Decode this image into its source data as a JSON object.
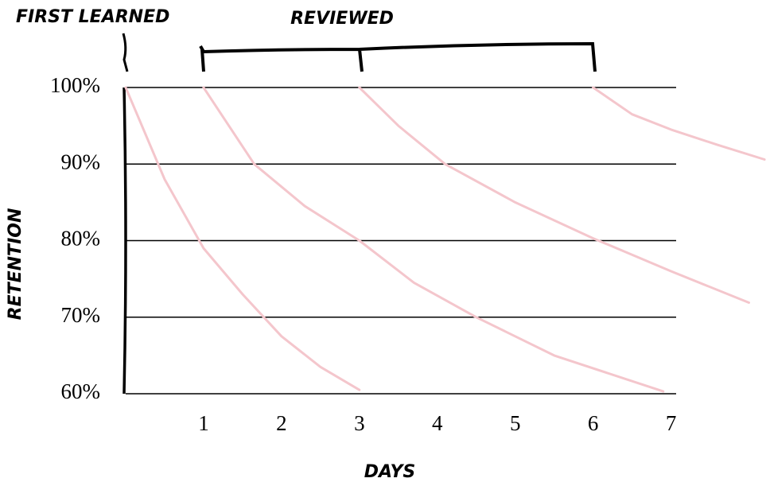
{
  "chart_data": {
    "type": "line",
    "annotations": [
      "FIRST LEARNED",
      "REVIEWED"
    ],
    "xlabel": "DAYS",
    "ylabel": "RETENTION",
    "xlim": [
      0,
      8.25
    ],
    "ylim": [
      60,
      100
    ],
    "xticks": [
      1,
      2,
      3,
      4,
      5,
      6,
      7
    ],
    "yticks": [
      {
        "value": 60,
        "label": "60%"
      },
      {
        "value": 70,
        "label": "70%"
      },
      {
        "value": 80,
        "label": "80%"
      },
      {
        "value": 90,
        "label": "90%"
      },
      {
        "value": 100,
        "label": "100%"
      }
    ],
    "grid": true,
    "series": [
      {
        "color": "#f4c6cc",
        "x": [
          0,
          0.5,
          1,
          1.5,
          2,
          2.5,
          3
        ],
        "values": [
          100,
          88,
          79,
          73,
          67.5,
          63.5,
          60.5
        ]
      },
      {
        "color": "#f4c6cc",
        "x": [
          1,
          1.65,
          2.3,
          3,
          3.7,
          4.5,
          5.5,
          6.9
        ],
        "values": [
          100,
          90,
          84.5,
          80,
          74.5,
          70,
          65,
          60.3
        ]
      },
      {
        "color": "#f4c6cc",
        "x": [
          3,
          3.5,
          4.1,
          5,
          6,
          7,
          8
        ],
        "values": [
          100,
          95,
          90,
          85,
          80.3,
          76,
          71.9
        ]
      },
      {
        "color": "#f4c6cc",
        "x": [
          6,
          6.5,
          7,
          7.6,
          8.2
        ],
        "values": [
          100,
          96.5,
          94.5,
          92.5,
          90.6
        ]
      }
    ]
  }
}
